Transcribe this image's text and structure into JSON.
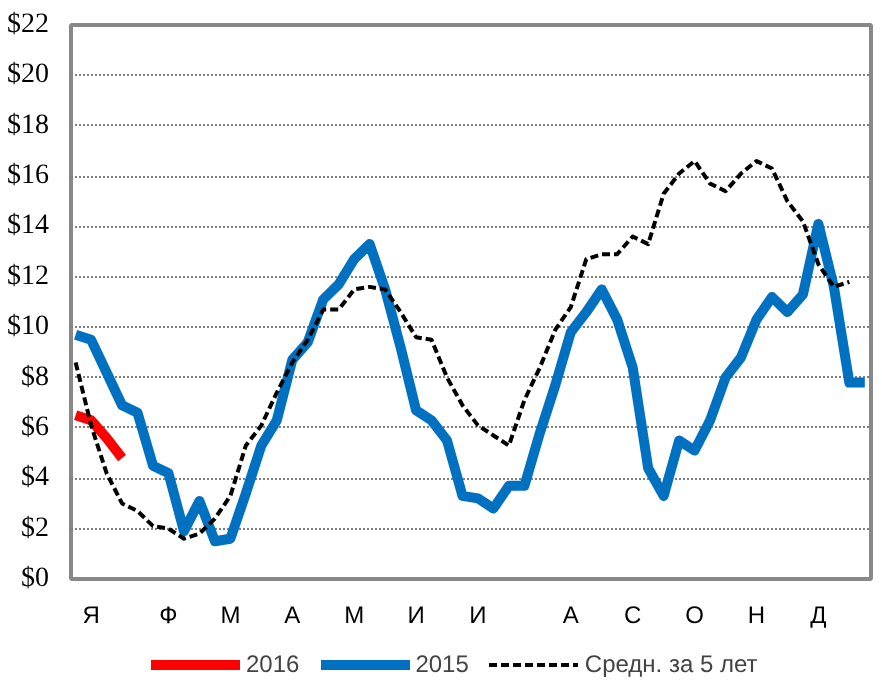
{
  "chart_data": {
    "type": "line",
    "categories": [
      null,
      "Я",
      null,
      null,
      null,
      null,
      "Ф",
      null,
      null,
      null,
      "М",
      null,
      null,
      null,
      "А",
      null,
      null,
      null,
      "М",
      null,
      null,
      null,
      "И",
      null,
      null,
      null,
      "И",
      null,
      null,
      null,
      null,
      null,
      "А",
      null,
      null,
      null,
      "С",
      null,
      null,
      null,
      "О",
      null,
      null,
      null,
      "Н",
      null,
      null,
      null,
      "Д",
      null,
      null,
      null
    ],
    "ylim": [
      0,
      22
    ],
    "yticks": [
      {
        "value": 0,
        "label": "$0"
      },
      {
        "value": 2,
        "label": "$2"
      },
      {
        "value": 4,
        "label": "$4"
      },
      {
        "value": 6,
        "label": "$6"
      },
      {
        "value": 8,
        "label": "$8"
      },
      {
        "value": 10,
        "label": "$10"
      },
      {
        "value": 12,
        "label": "$12"
      },
      {
        "value": 14,
        "label": "$14"
      },
      {
        "value": 16,
        "label": "$16"
      },
      {
        "value": 18,
        "label": "$18"
      },
      {
        "value": 20,
        "label": "$20"
      },
      {
        "value": 22,
        "label": "$22"
      }
    ],
    "grid": "y",
    "legend": "bottom",
    "series": [
      {
        "name": "2016",
        "color": "#ff0000",
        "line_style": "solid",
        "values": [
          6.5,
          6.3,
          5.6,
          4.8,
          null,
          null,
          null,
          null,
          null,
          null,
          null,
          null,
          null,
          null,
          null,
          null,
          null,
          null,
          null,
          null,
          null,
          null,
          null,
          null,
          null,
          null,
          null,
          null,
          null,
          null,
          null,
          null,
          null,
          null,
          null,
          null,
          null,
          null,
          null,
          null,
          null,
          null,
          null,
          null,
          null,
          null,
          null,
          null,
          null,
          null,
          null,
          null
        ]
      },
      {
        "name": "2015",
        "color": "#0070c0",
        "line_style": "solid",
        "values": [
          9.7,
          9.5,
          8.2,
          6.9,
          6.6,
          4.5,
          4.2,
          1.9,
          3.1,
          1.5,
          1.6,
          3.4,
          5.3,
          6.3,
          8.7,
          9.4,
          11.1,
          11.7,
          12.7,
          13.3,
          11.5,
          9.2,
          6.7,
          6.3,
          5.5,
          3.3,
          3.2,
          2.8,
          3.7,
          3.7,
          5.8,
          7.7,
          9.8,
          10.6,
          11.5,
          10.3,
          8.4,
          4.4,
          3.3,
          5.5,
          5.1,
          6.3,
          8.0,
          8.8,
          10.3,
          11.2,
          10.6,
          11.3,
          14.1,
          11.6,
          7.8,
          7.8
        ]
      },
      {
        "name": "Средн. за 5 лет",
        "color": "#000000",
        "line_style": "dashed",
        "values": [
          8.6,
          6.1,
          4.2,
          3.0,
          2.7,
          2.1,
          2.0,
          1.6,
          1.8,
          2.4,
          3.3,
          5.3,
          6.1,
          7.4,
          8.6,
          9.5,
          10.7,
          10.7,
          11.5,
          11.6,
          11.5,
          10.6,
          9.6,
          9.5,
          8.0,
          6.9,
          6.1,
          5.7,
          5.3,
          7.1,
          8.4,
          9.9,
          10.8,
          12.7,
          12.9,
          12.9,
          13.6,
          13.3,
          15.3,
          16.1,
          16.6,
          15.7,
          15.4,
          16.1,
          16.6,
          16.3,
          15.0,
          14.2,
          12.5,
          11.6,
          11.8,
          null
        ]
      }
    ]
  }
}
